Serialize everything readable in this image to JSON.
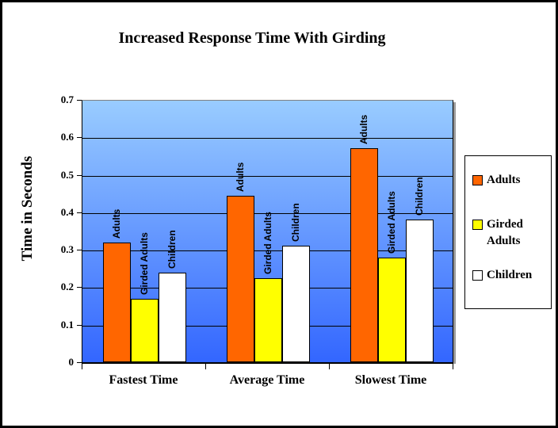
{
  "page": {
    "title": "Increased Response Time With Girding"
  },
  "chart_data": {
    "type": "bar",
    "title": "Increased Response Time With Girding",
    "categories": [
      "Fastest Time",
      "Average Time",
      "Slowest Time"
    ],
    "series": [
      {
        "name": "Adults",
        "color": "#ff6600",
        "values": [
          0.32,
          0.445,
          0.57
        ]
      },
      {
        "name": "Girded Adults",
        "color": "#ffff00",
        "values": [
          0.17,
          0.225,
          0.28
        ]
      },
      {
        "name": "Children",
        "color": "#ffffff",
        "values": [
          0.24,
          0.31,
          0.38
        ]
      }
    ],
    "xlabel": "",
    "ylabel": "Time in Seconds",
    "ylim": [
      0,
      0.7
    ],
    "yticks": [
      0,
      0.1,
      0.2,
      0.3,
      0.4,
      0.5,
      0.6,
      0.7
    ],
    "ytick_labels": [
      "0",
      "0.1",
      "0.2",
      "0.3",
      "0.4",
      "0.5",
      "0.6",
      "0.7"
    ],
    "grid": true,
    "bar_labels_shown": true,
    "legend_position": "right",
    "plot_background": {
      "gradient_top": "#99ccff",
      "gradient_bottom": "#3366ff"
    },
    "frame_border_color": "#000000"
  },
  "legend": {
    "entries": [
      {
        "label": "Adults",
        "color": "#ff6600"
      },
      {
        "label": "Girded Adults",
        "color": "#ffff00"
      },
      {
        "label": "Children",
        "color": "#ffffff"
      }
    ]
  }
}
